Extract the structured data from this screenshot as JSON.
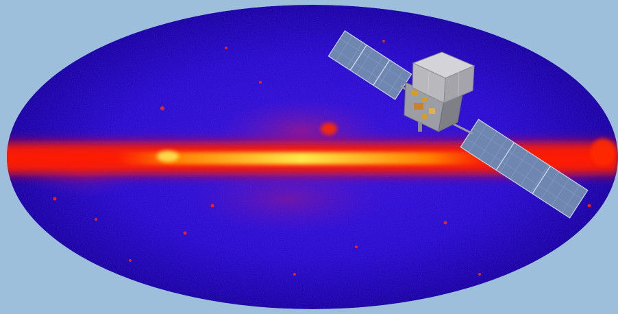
{
  "image": {
    "background_color": "#9dbfdc",
    "sky_map": {
      "projection": "all-sky ellipse",
      "colors": {
        "dark_blue": "#14009a",
        "blue": "#2a0fd0",
        "magenta": "#7a1bb0",
        "red": "#ff1500",
        "orange": "#ff7a00",
        "yellow": "#ffe94a"
      }
    },
    "spacecraft": {
      "bus_color": "#b9b9bd",
      "panel_color": "#6f87b0",
      "panel_line_color": "#c9d6ea",
      "accent_color": "#d99a2a"
    }
  }
}
